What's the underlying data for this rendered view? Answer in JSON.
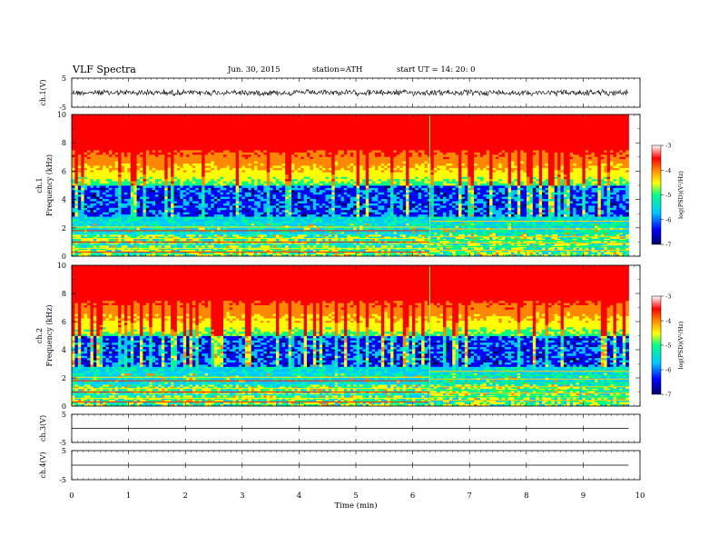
{
  "header": {
    "title": "VLF  Spectra",
    "date": "Jun. 30, 2015",
    "station": "station=ATH",
    "start": "start  UT  =   14: 20: 0"
  },
  "chart_data": [
    {
      "type": "line",
      "name": "ch1-waveform",
      "ylabel": "ch.1(V)",
      "ylim": [
        -5,
        5
      ],
      "yticks": [
        "5",
        "-5"
      ],
      "xlim": [
        0,
        10
      ],
      "trace_end_min": 9.8,
      "amplitude_v": 0.9,
      "baseline_v": 0
    },
    {
      "type": "heatmap",
      "name": "ch1-spectrogram",
      "ylabel_top": "ch.1",
      "ylabel": "Frequency  (kHz)",
      "ylim": [
        0,
        10
      ],
      "yticks": [
        "10",
        "8",
        "6",
        "4",
        "2",
        "0"
      ],
      "xlim": [
        0,
        10
      ],
      "data_end_min": 9.8,
      "change_time_min": 6.3,
      "colorbar": {
        "label": "log(PSD)(V²/Hz)",
        "ticks": [
          "-3",
          "-4",
          "-5",
          "-6",
          "-7"
        ],
        "range": [
          -7,
          -3
        ]
      }
    },
    {
      "type": "heatmap",
      "name": "ch2-spectrogram",
      "ylabel_top": "ch.2",
      "ylabel": "Frequency  (kHz)",
      "ylim": [
        0,
        10
      ],
      "yticks": [
        "10",
        "8",
        "6",
        "4",
        "2",
        "0"
      ],
      "xlim": [
        0,
        10
      ],
      "data_end_min": 9.8,
      "change_time_min": 6.3,
      "colorbar": {
        "label": "log(PSD)(V²/Hz)",
        "ticks": [
          "-3",
          "-4",
          "-5",
          "-6",
          "-7"
        ],
        "range": [
          -7,
          -3
        ]
      }
    },
    {
      "type": "line",
      "name": "ch3-waveform",
      "ylabel": "ch.3(V)",
      "ylim": [
        -5,
        5
      ],
      "yticks": [
        "5",
        "-5"
      ],
      "xlim": [
        0,
        10
      ],
      "trace_end_min": 9.8,
      "baseline_v": 0
    },
    {
      "type": "line",
      "name": "ch4-waveform",
      "ylabel": "ch.4(V)",
      "ylim": [
        -5,
        5
      ],
      "yticks": [
        "5",
        "-5"
      ],
      "xlim": [
        0,
        10
      ],
      "trace_end_min": 9.8,
      "baseline_v": 0
    }
  ],
  "xaxis": {
    "label": "Time  (min)",
    "ticks": [
      "0",
      "1",
      "2",
      "3",
      "4",
      "5",
      "6",
      "7",
      "8",
      "9",
      "10"
    ]
  },
  "colors": {
    "colormap": [
      "#000066",
      "#0000ff",
      "#00c8ff",
      "#00ff88",
      "#ffff00",
      "#ff8800",
      "#ff0000",
      "#ffffff"
    ],
    "trace": "#000000"
  }
}
